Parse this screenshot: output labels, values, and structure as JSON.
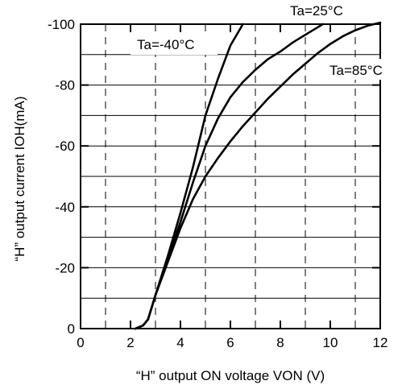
{
  "chart_data": {
    "type": "line",
    "xlabel": "“H” output ON voltage   VON (V)",
    "ylabel": "“H” output current   IOH(mA)",
    "xlim": [
      0,
      12
    ],
    "ylim": [
      0,
      -100
    ],
    "xticks": [
      "0",
      "2",
      "4",
      "6",
      "8",
      "10",
      "12"
    ],
    "yticks": [
      "0",
      "-20",
      "-40",
      "-60",
      "-80",
      "-100"
    ],
    "grid": "dashed verticals at odd volts, solid horizontals every 10 mA",
    "series": [
      {
        "name": "Ta=-40°C",
        "x": [
          2.2,
          2.5,
          2.7,
          3.0,
          3.5,
          4.0,
          4.5,
          5.0,
          5.5,
          6.0,
          6.5
        ],
        "y": [
          0,
          -1,
          -3,
          -11,
          -24,
          -38,
          -53,
          -70,
          -82,
          -93,
          -100
        ]
      },
      {
        "name": "Ta=25°C",
        "x": [
          2.2,
          2.5,
          2.7,
          3.0,
          3.5,
          4.0,
          4.5,
          5.0,
          5.5,
          6.0,
          6.5,
          7.0,
          7.5,
          8.0,
          8.5,
          9.0,
          9.5,
          9.7
        ],
        "y": [
          0,
          -1,
          -3,
          -11,
          -23,
          -35,
          -48,
          -60,
          -69,
          -76,
          -81,
          -85,
          -88.5,
          -91,
          -94,
          -96.5,
          -99,
          -100
        ]
      },
      {
        "name": "Ta=85°C",
        "x": [
          2.2,
          2.5,
          2.7,
          3.0,
          3.5,
          4.0,
          4.5,
          5.0,
          5.5,
          6.0,
          6.5,
          7.0,
          7.5,
          8.0,
          8.5,
          9.0,
          9.5,
          10.0,
          10.5,
          11.0,
          11.5,
          12.0
        ],
        "y": [
          0,
          -1,
          -3,
          -11,
          -22,
          -33,
          -42.5,
          -50,
          -56,
          -61.5,
          -66.5,
          -71,
          -75.5,
          -79.5,
          -83.5,
          -87,
          -90.5,
          -93.5,
          -96,
          -98,
          -99.5,
          -100.5
        ]
      }
    ]
  }
}
